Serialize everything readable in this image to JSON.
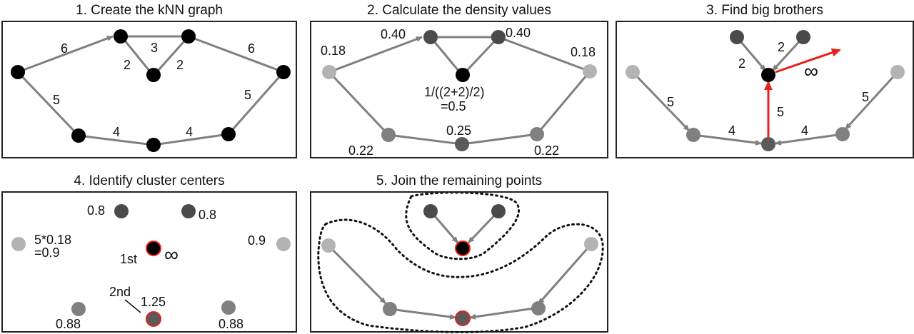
{
  "colors": {
    "node_dark": "#000000",
    "node_mid": "#4a4a4a",
    "node_gray": "#808080",
    "node_light": "#b3b3b3",
    "edge": "#7f7f7f",
    "highlight": "#e8201a",
    "border": "#222222"
  },
  "panels": [
    {
      "title": "1. Create the kNN graph",
      "labels": [
        "6",
        "3",
        "2",
        "2",
        "6",
        "5",
        "5",
        "4",
        "4"
      ]
    },
    {
      "title": "2. Calculate the density values",
      "labels": [
        "0.40",
        "0.40",
        "0.18",
        "0.18",
        "1/((2+2)/2)",
        "=0.5",
        "0.25",
        "0.22",
        "0.22"
      ]
    },
    {
      "title": "3. Find big brothers",
      "labels": [
        "2",
        "2",
        "∞",
        "5",
        "5",
        "5",
        "4",
        "4"
      ]
    },
    {
      "title": "4. Identify cluster centers",
      "labels": [
        "0.8",
        "0.8",
        "5*0.18",
        "=0.9",
        "0.9",
        "1st",
        "∞",
        "2nd",
        "1.25",
        "0.88",
        "0.88"
      ]
    },
    {
      "title": "5. Join the remaining points",
      "labels": []
    }
  ]
}
